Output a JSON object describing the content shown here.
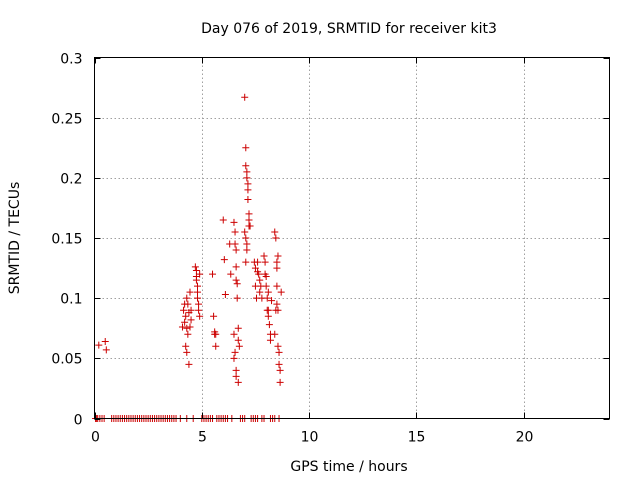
{
  "chart_data": {
    "type": "scatter",
    "title": "Day 076 of 2019, SRMTID for receiver kit3",
    "xlabel": "GPS time / hours",
    "ylabel": "SRMTID / TECUs",
    "xlim": [
      0,
      24
    ],
    "ylim": [
      0,
      0.3
    ],
    "x_ticks": [
      0,
      5,
      10,
      15,
      20
    ],
    "y_ticks": [
      0,
      0.05,
      0.1,
      0.15,
      0.2,
      0.25,
      0.3
    ],
    "x_tick_labels": [
      "0",
      "5",
      "10",
      "15",
      "20"
    ],
    "y_tick_labels": [
      "0",
      "0.05",
      "0.1",
      "0.15",
      "0.2",
      "0.25",
      "0.3"
    ],
    "grid": true,
    "marker": "+",
    "color": "#cc0000",
    "series": [
      {
        "x": [
          0.2,
          0.5,
          0.55,
          4.1,
          4.15,
          4.2,
          4.2,
          4.25,
          4.25,
          4.3,
          4.3,
          4.35,
          4.35,
          4.4,
          4.4,
          4.45,
          4.45,
          4.5,
          4.5,
          4.3,
          4.7,
          4.75,
          4.75,
          4.8,
          4.8,
          4.85,
          4.85,
          4.9,
          4.9,
          4.8,
          4.75,
          5.5,
          5.55,
          5.6,
          5.6,
          5.65,
          5.65,
          6.0,
          6.05,
          6.1,
          6.3,
          6.35,
          6.5,
          6.55,
          6.55,
          6.6,
          6.6,
          6.6,
          6.65,
          6.65,
          6.7,
          6.7,
          6.5,
          6.55,
          6.6,
          6.7,
          6.75,
          6.5,
          6.6,
          7.0,
          7.05,
          7.05,
          7.1,
          7.1,
          7.15,
          7.15,
          7.2,
          7.2,
          7.25,
          7.0,
          7.05,
          7.1,
          7.2,
          7.1,
          7.05,
          7.15,
          7.45,
          7.5,
          7.5,
          7.55,
          7.6,
          7.6,
          7.65,
          7.7,
          7.7,
          7.75,
          7.8,
          7.9,
          7.95,
          8.0,
          8.0,
          8.05,
          8.1,
          8.1,
          8.15,
          8.2,
          8.2,
          8.25,
          7.95,
          8.05,
          8.1,
          8.4,
          8.45,
          8.5,
          8.5,
          8.5,
          8.55,
          8.55,
          8.6,
          8.6,
          8.65,
          8.65,
          8.7,
          8.5,
          8.55,
          8.4,
          8.45
        ],
        "y": [
          0.061,
          0.064,
          0.057,
          0.076,
          0.09,
          0.095,
          0.08,
          0.085,
          0.06,
          0.1,
          0.055,
          0.095,
          0.07,
          0.088,
          0.045,
          0.105,
          0.076,
          0.09,
          0.082,
          0.075,
          0.126,
          0.123,
          0.118,
          0.11,
          0.1,
          0.095,
          0.09,
          0.12,
          0.085,
          0.105,
          0.115,
          0.12,
          0.085,
          0.072,
          0.07,
          0.06,
          0.07,
          0.165,
          0.132,
          0.103,
          0.145,
          0.12,
          0.163,
          0.155,
          0.145,
          0.14,
          0.126,
          0.115,
          0.112,
          0.1,
          0.075,
          0.065,
          0.05,
          0.055,
          0.04,
          0.03,
          0.06,
          0.07,
          0.035,
          0.267,
          0.225,
          0.21,
          0.205,
          0.2,
          0.195,
          0.19,
          0.17,
          0.165,
          0.16,
          0.155,
          0.15,
          0.145,
          0.16,
          0.14,
          0.13,
          0.182,
          0.13,
          0.125,
          0.11,
          0.1,
          0.13,
          0.122,
          0.12,
          0.115,
          0.105,
          0.11,
          0.1,
          0.135,
          0.12,
          0.118,
          0.11,
          0.1,
          0.09,
          0.085,
          0.078,
          0.07,
          0.065,
          0.098,
          0.13,
          0.09,
          0.105,
          0.155,
          0.15,
          0.13,
          0.125,
          0.095,
          0.09,
          0.06,
          0.055,
          0.045,
          0.04,
          0.03,
          0.105,
          0.11,
          0.135,
          0.07,
          0.09
        ]
      },
      {
        "x": [
          0.05,
          0.1,
          0.15,
          0.25,
          0.35,
          0.45,
          0.8,
          0.9,
          1.0,
          1.1,
          1.2,
          1.3,
          1.4,
          1.5,
          1.6,
          1.7,
          1.8,
          1.9,
          2.0,
          2.1,
          2.2,
          2.3,
          2.4,
          2.5,
          2.6,
          2.7,
          2.8,
          2.9,
          3.0,
          3.1,
          3.2,
          3.3,
          3.4,
          3.5,
          3.6,
          3.7,
          3.8,
          4.0,
          4.3,
          4.6,
          5.0,
          5.1,
          5.2,
          5.3,
          5.4,
          5.5,
          5.7,
          5.8,
          5.9,
          6.0,
          6.1,
          6.2,
          6.4,
          6.8,
          6.9,
          7.0,
          7.3,
          7.4,
          7.5,
          7.6,
          7.8,
          7.9,
          8.2,
          8.3,
          8.4,
          8.6
        ],
        "y": [
          0,
          0,
          0,
          0,
          0,
          0,
          0,
          0,
          0,
          0,
          0,
          0,
          0,
          0,
          0,
          0,
          0,
          0,
          0,
          0,
          0,
          0,
          0,
          0,
          0,
          0,
          0,
          0,
          0,
          0,
          0,
          0,
          0,
          0,
          0,
          0,
          0,
          0,
          0,
          0,
          0,
          0,
          0,
          0,
          0,
          0,
          0,
          0,
          0,
          0,
          0,
          0,
          0,
          0,
          0,
          0,
          0,
          0,
          0,
          0,
          0,
          0,
          0,
          0,
          0,
          0
        ]
      }
    ]
  }
}
